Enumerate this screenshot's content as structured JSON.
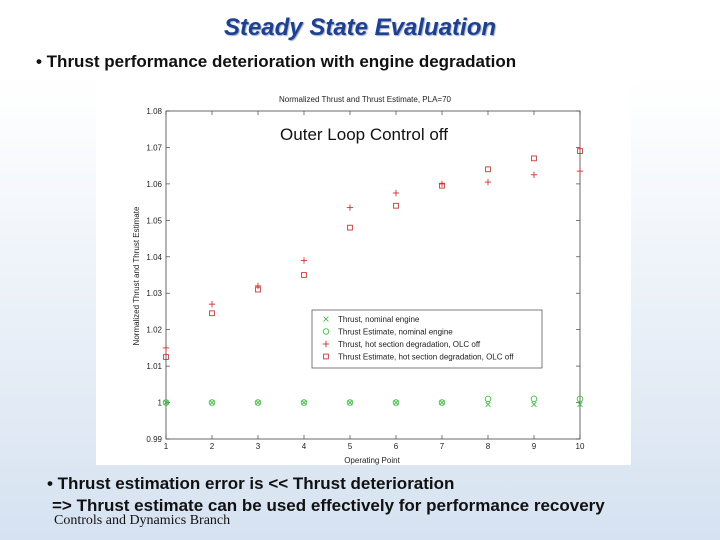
{
  "slide": {
    "title": "Steady State Evaluation",
    "bullet_top": "• Thrust performance deterioration with engine degradation",
    "bullet_bottom_1": "• Thrust estimation error is << Thrust deterioration",
    "bullet_bottom_2": "=> Thrust estimate can be used effectively for performance recovery",
    "footer": "Controls and Dynamics Branch"
  },
  "chart_data": {
    "type": "scatter",
    "title": "Normalized Thrust and Thrust Estimate, PLA=70",
    "annotation": "Outer Loop Control off",
    "xlabel": "Operating Point",
    "ylabel": "Normalized Thrust and Thrust Estimate",
    "xlim": [
      1,
      10
    ],
    "ylim": [
      0.99,
      1.08
    ],
    "xticks": [
      "1",
      "2",
      "3",
      "4",
      "5",
      "6",
      "7",
      "8",
      "9",
      "10"
    ],
    "yticks": [
      "0.99",
      "1",
      "1.01",
      "1.02",
      "1.03",
      "1.04",
      "1.05",
      "1.06",
      "1.07",
      "1.08"
    ],
    "grid": false,
    "legend_position": "lower-right",
    "series": [
      {
        "name": "Thrust, nominal engine",
        "marker": "x",
        "color": "#44bb44",
        "x": [
          1,
          2,
          3,
          4,
          5,
          6,
          7,
          8,
          9,
          10
        ],
        "y": [
          1.0,
          1.0,
          1.0,
          1.0,
          1.0,
          1.0,
          1.0,
          0.9995,
          0.9995,
          0.9995
        ]
      },
      {
        "name": "Thrust Estimate, nominal engine",
        "marker": "o",
        "color": "#44bb44",
        "x": [
          1,
          2,
          3,
          4,
          5,
          6,
          7,
          8,
          9,
          10
        ],
        "y": [
          1.0,
          1.0,
          1.0,
          1.0,
          1.0,
          1.0,
          1.0,
          1.001,
          1.001,
          1.001
        ]
      },
      {
        "name": "Thrust, hot section degradation, OLC off",
        "marker": "+",
        "color": "#cc3333",
        "x": [
          1,
          2,
          3,
          4,
          5,
          6,
          7,
          8,
          9,
          10
        ],
        "y": [
          1.015,
          1.027,
          1.032,
          1.039,
          1.0535,
          1.0575,
          1.06,
          1.0605,
          1.0625,
          1.0635
        ]
      },
      {
        "name": "Thrust Estimate, hot section degradation, OLC off",
        "marker": "square",
        "color": "#cc3333",
        "x": [
          1,
          2,
          3,
          4,
          5,
          6,
          7,
          8,
          9,
          10
        ],
        "y": [
          1.0125,
          1.0245,
          1.031,
          1.035,
          1.048,
          1.054,
          1.0595,
          1.064,
          1.067,
          1.069
        ]
      }
    ]
  }
}
